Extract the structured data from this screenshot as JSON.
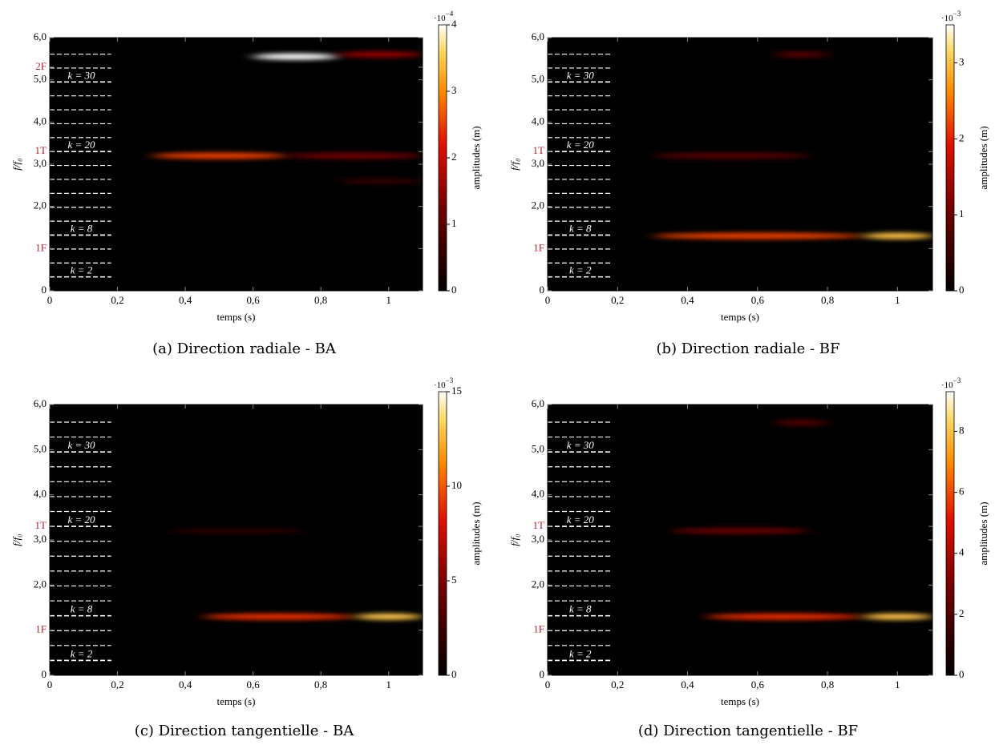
{
  "chart_data": [
    {
      "type": "heatmap",
      "caption": "(a) Direction radiale - BA",
      "xlabel": "temps (s)",
      "ylabel": "f/f₀",
      "xlim": [
        0,
        1.1
      ],
      "ylim": [
        0,
        6
      ],
      "xticks": [
        0,
        {
          "value": 0.2,
          "label": "0,2"
        },
        {
          "value": 0.4,
          "label": "0,4"
        },
        {
          "value": 0.6,
          "label": "0,6"
        },
        {
          "value": 0.8,
          "label": "0,8"
        },
        1
      ],
      "yticks": [
        0,
        {
          "value": 2,
          "label": "2,0"
        },
        {
          "value": 3,
          "label": "3,0"
        },
        {
          "value": 4,
          "label": "4,0"
        },
        {
          "value": 5,
          "label": "5,0"
        },
        {
          "value": 6,
          "label": "6,0"
        }
      ],
      "modes": [
        {
          "label": "2F",
          "value": 5.3
        },
        {
          "label": "1T",
          "value": 3.3
        },
        {
          "label": "1F",
          "value": 1.0
        }
      ],
      "k_lines": [
        0.33,
        0.66,
        0.99,
        1.32,
        1.65,
        1.98,
        2.31,
        2.64,
        2.97,
        3.3,
        3.63,
        3.96,
        4.29,
        4.62,
        4.95,
        5.28,
        5.61
      ],
      "k_labels": [
        {
          "label": "k = 2",
          "value": 0.33
        },
        {
          "label": "k = 8",
          "value": 1.32
        },
        {
          "label": "k = 20",
          "value": 3.3
        },
        {
          "label": "k = 30",
          "value": 4.95
        }
      ],
      "colorbar": {
        "label": "amplitudes (m)",
        "base": "·10",
        "exponent": "−4",
        "lim": [
          0,
          4
        ],
        "ticks": [
          0,
          1,
          2,
          3,
          4
        ]
      },
      "ridges": [
        {
          "freq": 5.55,
          "t0": 0.6,
          "t1": 0.85,
          "peak": 4
        },
        {
          "freq": 5.6,
          "t0": 0.85,
          "t1": 1.1,
          "peak": 1.5
        },
        {
          "freq": 3.2,
          "t0": 0.3,
          "t1": 0.7,
          "peak": 2.5
        },
        {
          "freq": 3.2,
          "t0": 0.7,
          "t1": 1.1,
          "peak": 1.2
        },
        {
          "freq": 2.6,
          "t0": 0.85,
          "t1": 1.1,
          "peak": 0.5
        }
      ]
    },
    {
      "type": "heatmap",
      "caption": "(b) Direction radiale - BF",
      "xlabel": "temps (s)",
      "ylabel": "f/f₀",
      "xlim": [
        0,
        1.1
      ],
      "ylim": [
        0,
        6
      ],
      "xticks": [
        0,
        {
          "value": 0.2,
          "label": "0,2"
        },
        {
          "value": 0.4,
          "label": "0,4"
        },
        {
          "value": 0.6,
          "label": "0,6"
        },
        {
          "value": 0.8,
          "label": "0,8"
        },
        1
      ],
      "yticks": [
        0,
        {
          "value": 2,
          "label": "2,0"
        },
        {
          "value": 3,
          "label": "3,0"
        },
        {
          "value": 4,
          "label": "4,0"
        },
        {
          "value": 5,
          "label": "5,0"
        },
        {
          "value": 6,
          "label": "6,0"
        }
      ],
      "modes": [
        {
          "label": "1T",
          "value": 3.3
        },
        {
          "label": "1F",
          "value": 1.0
        }
      ],
      "k_lines": [
        0.33,
        0.66,
        0.99,
        1.32,
        1.65,
        1.98,
        2.31,
        2.64,
        2.97,
        3.3,
        3.63,
        3.96,
        4.29,
        4.62,
        4.95,
        5.28,
        5.61
      ],
      "k_labels": [
        {
          "label": "k = 2",
          "value": 0.33
        },
        {
          "label": "k = 8",
          "value": 1.32
        },
        {
          "label": "k = 20",
          "value": 3.3
        },
        {
          "label": "k = 30",
          "value": 4.95
        }
      ],
      "colorbar": {
        "label": "amplitudes (m)",
        "base": "·10",
        "exponent": "−3",
        "lim": [
          0,
          3.5
        ],
        "ticks": [
          0,
          1,
          2,
          3
        ]
      },
      "ridges": [
        {
          "freq": 1.3,
          "t0": 0.3,
          "t1": 0.9,
          "peak": 2.2
        },
        {
          "freq": 1.3,
          "t0": 0.9,
          "t1": 1.1,
          "peak": 3
        },
        {
          "freq": 3.2,
          "t0": 0.3,
          "t1": 0.75,
          "peak": 0.8
        },
        {
          "freq": 5.6,
          "t0": 0.65,
          "t1": 0.8,
          "peak": 0.8
        }
      ]
    },
    {
      "type": "heatmap",
      "caption": "(c) Direction tangentielle - BA",
      "xlabel": "temps (s)",
      "ylabel": "f/f₀",
      "xlim": [
        0,
        1.1
      ],
      "ylim": [
        0,
        6
      ],
      "xticks": [
        0,
        {
          "value": 0.2,
          "label": "0,2"
        },
        {
          "value": 0.4,
          "label": "0,4"
        },
        {
          "value": 0.6,
          "label": "0,6"
        },
        {
          "value": 0.8,
          "label": "0,8"
        },
        1
      ],
      "yticks": [
        0,
        {
          "value": 2,
          "label": "2,0"
        },
        {
          "value": 3,
          "label": "3,0"
        },
        {
          "value": 4,
          "label": "4,0"
        },
        {
          "value": 5,
          "label": "5,0"
        },
        {
          "value": 6,
          "label": "6,0"
        }
      ],
      "modes": [
        {
          "label": "1T",
          "value": 3.3
        },
        {
          "label": "1F",
          "value": 1.0
        }
      ],
      "k_lines": [
        0.33,
        0.66,
        0.99,
        1.32,
        1.65,
        1.98,
        2.31,
        2.64,
        2.97,
        3.3,
        3.63,
        3.96,
        4.29,
        4.62,
        4.95,
        5.28,
        5.61
      ],
      "k_labels": [
        {
          "label": "k = 2",
          "value": 0.33
        },
        {
          "label": "k = 8",
          "value": 1.32
        },
        {
          "label": "k = 20",
          "value": 3.3
        },
        {
          "label": "k = 30",
          "value": 4.95
        }
      ],
      "colorbar": {
        "label": "amplitudes (m)",
        "base": "·10",
        "exponent": "−3",
        "lim": [
          0,
          15
        ],
        "ticks": [
          0,
          5,
          10,
          15
        ]
      },
      "ridges": [
        {
          "freq": 1.3,
          "t0": 0.45,
          "t1": 0.9,
          "peak": 9
        },
        {
          "freq": 1.3,
          "t0": 0.9,
          "t1": 1.1,
          "peak": 13
        },
        {
          "freq": 3.2,
          "t0": 0.35,
          "t1": 0.75,
          "peak": 1.5
        }
      ]
    },
    {
      "type": "heatmap",
      "caption": "(d) Direction tangentielle - BF",
      "xlabel": "temps (s)",
      "ylabel": "f/f₀",
      "xlim": [
        0,
        1.1
      ],
      "ylim": [
        0,
        6
      ],
      "xticks": [
        0,
        {
          "value": 0.2,
          "label": "0,2"
        },
        {
          "value": 0.4,
          "label": "0,4"
        },
        {
          "value": 0.6,
          "label": "0,6"
        },
        {
          "value": 0.8,
          "label": "0,8"
        },
        1
      ],
      "yticks": [
        0,
        {
          "value": 2,
          "label": "2,0"
        },
        {
          "value": 3,
          "label": "3,0"
        },
        {
          "value": 4,
          "label": "4,0"
        },
        {
          "value": 5,
          "label": "5,0"
        },
        {
          "value": 6,
          "label": "6,0"
        }
      ],
      "modes": [
        {
          "label": "1T",
          "value": 3.3
        },
        {
          "label": "1F",
          "value": 1.0
        }
      ],
      "k_lines": [
        0.33,
        0.66,
        0.99,
        1.32,
        1.65,
        1.98,
        2.31,
        2.64,
        2.97,
        3.3,
        3.63,
        3.96,
        4.29,
        4.62,
        4.95,
        5.28,
        5.61
      ],
      "k_labels": [
        {
          "label": "k = 2",
          "value": 0.33
        },
        {
          "label": "k = 8",
          "value": 1.32
        },
        {
          "label": "k = 20",
          "value": 3.3
        },
        {
          "label": "k = 30",
          "value": 4.95
        }
      ],
      "colorbar": {
        "label": "amplitudes (m)",
        "base": "·10",
        "exponent": "−3",
        "lim": [
          0,
          9.3
        ],
        "ticks": [
          0,
          2,
          4,
          6,
          8
        ]
      },
      "ridges": [
        {
          "freq": 1.3,
          "t0": 0.45,
          "t1": 0.9,
          "peak": 5.5
        },
        {
          "freq": 1.3,
          "t0": 0.9,
          "t1": 1.1,
          "peak": 8
        },
        {
          "freq": 3.2,
          "t0": 0.35,
          "t1": 0.75,
          "peak": 2.5
        },
        {
          "freq": 5.6,
          "t0": 0.65,
          "t1": 0.8,
          "peak": 2
        }
      ]
    }
  ]
}
